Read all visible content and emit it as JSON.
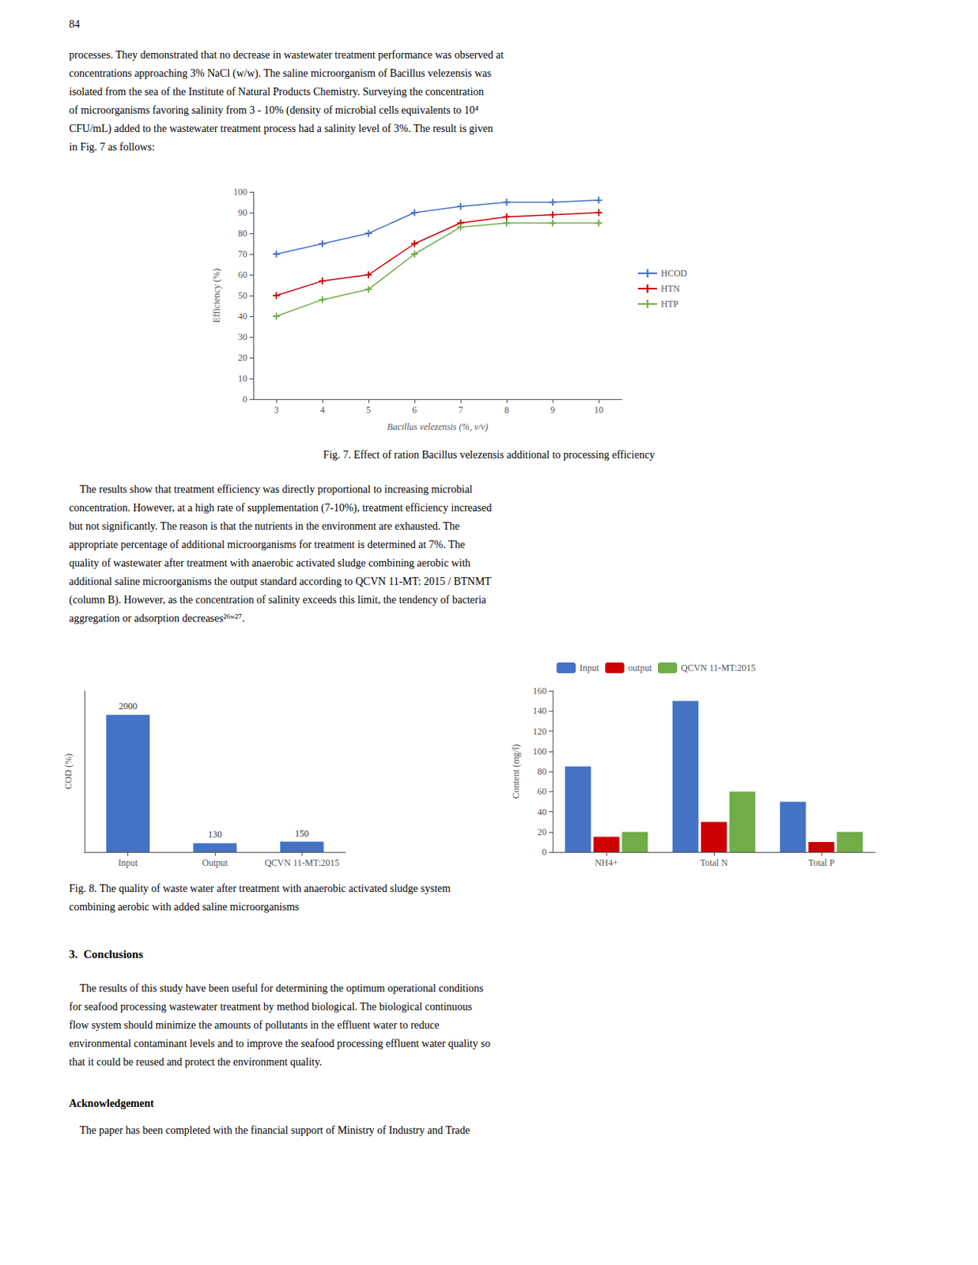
{
  "chart_data": [
    {
      "type": "line",
      "x": [
        3,
        4,
        5,
        6,
        7,
        8,
        9,
        10
      ],
      "series": [
        {
          "name": "HCOD",
          "color": "#4472c4",
          "values": [
            70,
            75,
            80,
            90,
            93,
            95,
            95,
            96
          ]
        },
        {
          "name": "HTN",
          "color": "#cc0000",
          "values": [
            50,
            57,
            60,
            75,
            85,
            88,
            89,
            90
          ]
        },
        {
          "name": "HTP",
          "color": "#70ad47",
          "values": [
            40,
            48,
            53,
            70,
            83,
            85,
            85,
            85
          ]
        }
      ],
      "xlabel": "Bacillus velezensis (%, v/v)",
      "ylabel": "Efficiency (%)",
      "xlim": [
        2.5,
        10.5
      ],
      "ylim": [
        0,
        100
      ],
      "xticks": [
        3,
        4,
        5,
        6,
        7,
        8,
        9,
        10
      ],
      "yticks": [
        0,
        10,
        20,
        30,
        40,
        50,
        60,
        70,
        80,
        90,
        100
      ],
      "marker": "plus",
      "legend": "center right",
      "grid": false
    },
    {
      "type": "bar",
      "categories": [
        "Input",
        "Output",
        "QCVN 11-MT:2015"
      ],
      "values": [
        2000,
        130,
        150
      ],
      "color": "#4472c4",
      "ylabel": "COD (%)",
      "ylim": [
        0,
        2350
      ],
      "data_labels": true,
      "tick_labels": "x",
      "grid": false
    },
    {
      "type": "bar",
      "categories": [
        "NH4+",
        "Total N",
        "Total P"
      ],
      "series": [
        {
          "name": "Input",
          "color": "#4472c4",
          "values": [
            85,
            150,
            50
          ]
        },
        {
          "name": "output",
          "color": "#cc0000",
          "values": [
            15,
            30,
            10
          ]
        },
        {
          "name": "QCVN 11-MT:2015",
          "color": "#70ad47",
          "values": [
            20,
            60,
            20
          ]
        }
      ],
      "ylabel": "Content (mg/l)",
      "ylim": [
        0,
        160
      ],
      "yticks": [
        0,
        20,
        40,
        60,
        80,
        100,
        120,
        140,
        160
      ],
      "legend": "upper left",
      "grid": false
    }
  ],
  "annotations": [
    [
      "84"
    ],
    [
      "processes. They demonstrated that no decrease in wastewater treatment performance was observed at",
      "concentrations approaching 3% NaCl (w/w). The saline microorganism of Bacillus velezensis was",
      "isolated from the sea of the Institute of Natural Products Chemistry. Surveying the concentration",
      "of microorganisms favoring salinity from 3 - 10% (density of microbial cells equivalents to 10⁴",
      "CFU/mL) added to the wastewater treatment process had a salinity level of 3%. The result is given",
      "in Fig. 7 as follows:"
    ],
    [
      "Fig. 7. Effect of ration Bacillus velezensis additional to processing efficiency"
    ],
    [
      "    The results show that treatment efficiency was directly proportional to increasing microbial",
      "concentration. However, at a high rate of supplementation (7-10%), treatment efficiency increased",
      "but not significantly. The reason is that the nutrients in the environment are exhausted. The",
      "appropriate percentage of additional microorganisms for treatment is determined at 7%. The",
      "quality of wastewater after treatment with anaerobic activated sludge combining aerobic with",
      "additional saline microorganisms the output standard according to QCVN 11-MT: 2015 / BTNMT",
      "(column B). However, as the concentration of salinity exceeds this limit, the tendency of bacteria",
      "aggregation or adsorption decreases²⁶ʷ²⁷."
    ],
    [
      "Fig. 8. The quality of waste water after treatment with anaerobic activated sludge system",
      "combining aerobic with added saline microorganisms"
    ],
    [
      "3.  Conclusions"
    ],
    [
      "    The results of this study have been useful for determining the optimum operational conditions",
      "for seafood processing wastewater treatment by method biological. The biological continuous",
      "flow system should minimize the amounts of pollutants in the effluent water to reduce",
      "environmental contaminant levels and to improve the seafood processing effluent water quality so",
      "that it could be reused and protect the environment quality."
    ],
    [
      "Acknowledgement"
    ],
    [
      "    The paper has been completed with the financial support of Ministry of Industry and Trade"
    ]
  ]
}
